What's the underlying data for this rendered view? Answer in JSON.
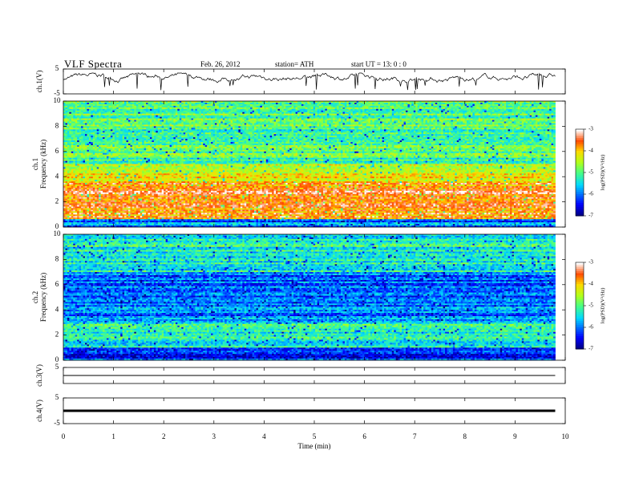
{
  "header": {
    "title": "VLF Spectra",
    "date": "Feb. 26, 2012",
    "station": "station= ATH",
    "start": "start UT =   13: 0  : 0"
  },
  "chart_data": [
    {
      "type": "line",
      "panel": "ch1-waveform",
      "ylabel": "ch.1(V)",
      "ylim": [
        -5,
        5
      ],
      "yticks": [
        5,
        -5
      ],
      "xlim": [
        0,
        10
      ],
      "note": "noisy waveform fluctuating roughly between 0 and 3 V across the record",
      "x_end": 9.8
    },
    {
      "type": "heatmap",
      "panel": "ch1-spectrogram",
      "ylabel": "ch.1\nFrequency (kHz)",
      "ylim": [
        0,
        10
      ],
      "yticks": [
        0,
        2,
        4,
        6,
        8,
        10
      ],
      "xlim": [
        0,
        10
      ],
      "x_end": 9.8,
      "colorbar": {
        "label": "log(PSD)(V²/Hz)",
        "range": [
          -7,
          -3
        ],
        "ticks": [
          -3,
          -4,
          -5,
          -6,
          -7
        ]
      },
      "description_levels": [
        {
          "freq": [
            0,
            0.6
          ],
          "log_psd": -6.0
        },
        {
          "freq": [
            0.6,
            3.5
          ],
          "log_psd": -3.6
        },
        {
          "freq": [
            3.5,
            5.0
          ],
          "log_psd": -4.3
        },
        {
          "freq": [
            5.0,
            10
          ],
          "log_psd": -5.0
        }
      ]
    },
    {
      "type": "heatmap",
      "panel": "ch2-spectrogram",
      "ylabel": "ch.2\nFrequency (kHz)",
      "ylim": [
        0,
        10
      ],
      "yticks": [
        0,
        2,
        4,
        6,
        8,
        10
      ],
      "xlim": [
        0,
        10
      ],
      "x_end": 9.8,
      "colorbar": {
        "label": "log(PSD)(V²/Hz)",
        "range": [
          -7,
          -3
        ],
        "ticks": [
          -3,
          -4,
          -5,
          -6,
          -7
        ]
      },
      "description_levels": [
        {
          "freq": [
            0,
            1.0
          ],
          "log_psd": -6.3
        },
        {
          "freq": [
            1.0,
            3.0
          ],
          "log_psd": -5.3
        },
        {
          "freq": [
            3.0,
            7.0
          ],
          "log_psd": -6.0
        },
        {
          "freq": [
            7.0,
            10
          ],
          "log_psd": -5.3
        }
      ]
    },
    {
      "type": "line",
      "panel": "ch3-waveform",
      "ylabel": "ch.3(V)",
      "ylim": [
        -5,
        5
      ],
      "yticks": [
        5
      ],
      "xlim": [
        0,
        10
      ],
      "x_end": 9.8,
      "level": 0
    },
    {
      "type": "line",
      "panel": "ch4-waveform",
      "ylabel": "ch.4(V)",
      "ylim": [
        -5,
        5
      ],
      "yticks": [
        5,
        -5
      ],
      "xlim": [
        0,
        10
      ],
      "x_end": 9.8,
      "level": 0
    }
  ],
  "xaxis": {
    "label": "Time (min)",
    "ticks": [
      "0",
      "1",
      "2",
      "3",
      "4",
      "5",
      "6",
      "7",
      "8",
      "9",
      "10"
    ]
  }
}
